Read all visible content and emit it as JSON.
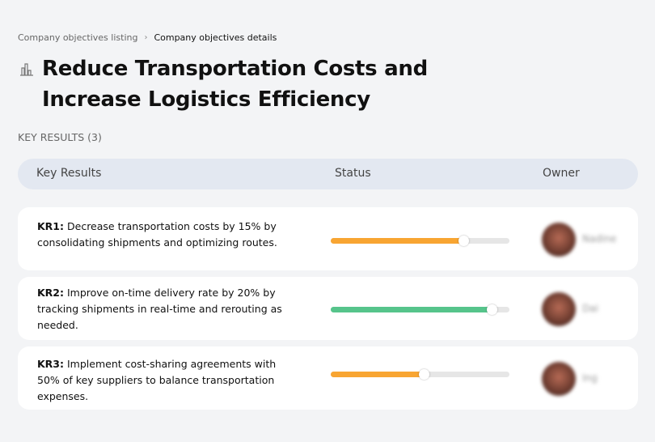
{
  "breadcrumb": {
    "parent": "Company objectives listing",
    "separator": "›",
    "current": "Company objectives details"
  },
  "title": "Reduce Transportation Costs and Increase Logistics Efficiency",
  "title_icon": "building-chart-icon",
  "section_label": "KEY RESULTS (3)",
  "table": {
    "headers": {
      "key_results": "Key Results",
      "status": "Status",
      "owner": "Owner"
    },
    "rows": [
      {
        "label": "KR1:",
        "text": "Decrease transportation costs by 15% by consolidating shipments and optimizing routes.",
        "progress": 74,
        "color": "#f8a532",
        "owner": "Nadine"
      },
      {
        "label": "KR2:",
        "text": "Improve on-time delivery rate by 20% by tracking shipments in real-time and rerouting as needed.",
        "progress": 90,
        "color": "#56c48b",
        "owner": "Dai"
      },
      {
        "label": "KR3:",
        "text": "Implement cost-sharing agreements with 50% of key suppliers to balance transportation expenses.",
        "progress": 52,
        "color": "#f8a532",
        "owner": "Ing"
      }
    ]
  }
}
